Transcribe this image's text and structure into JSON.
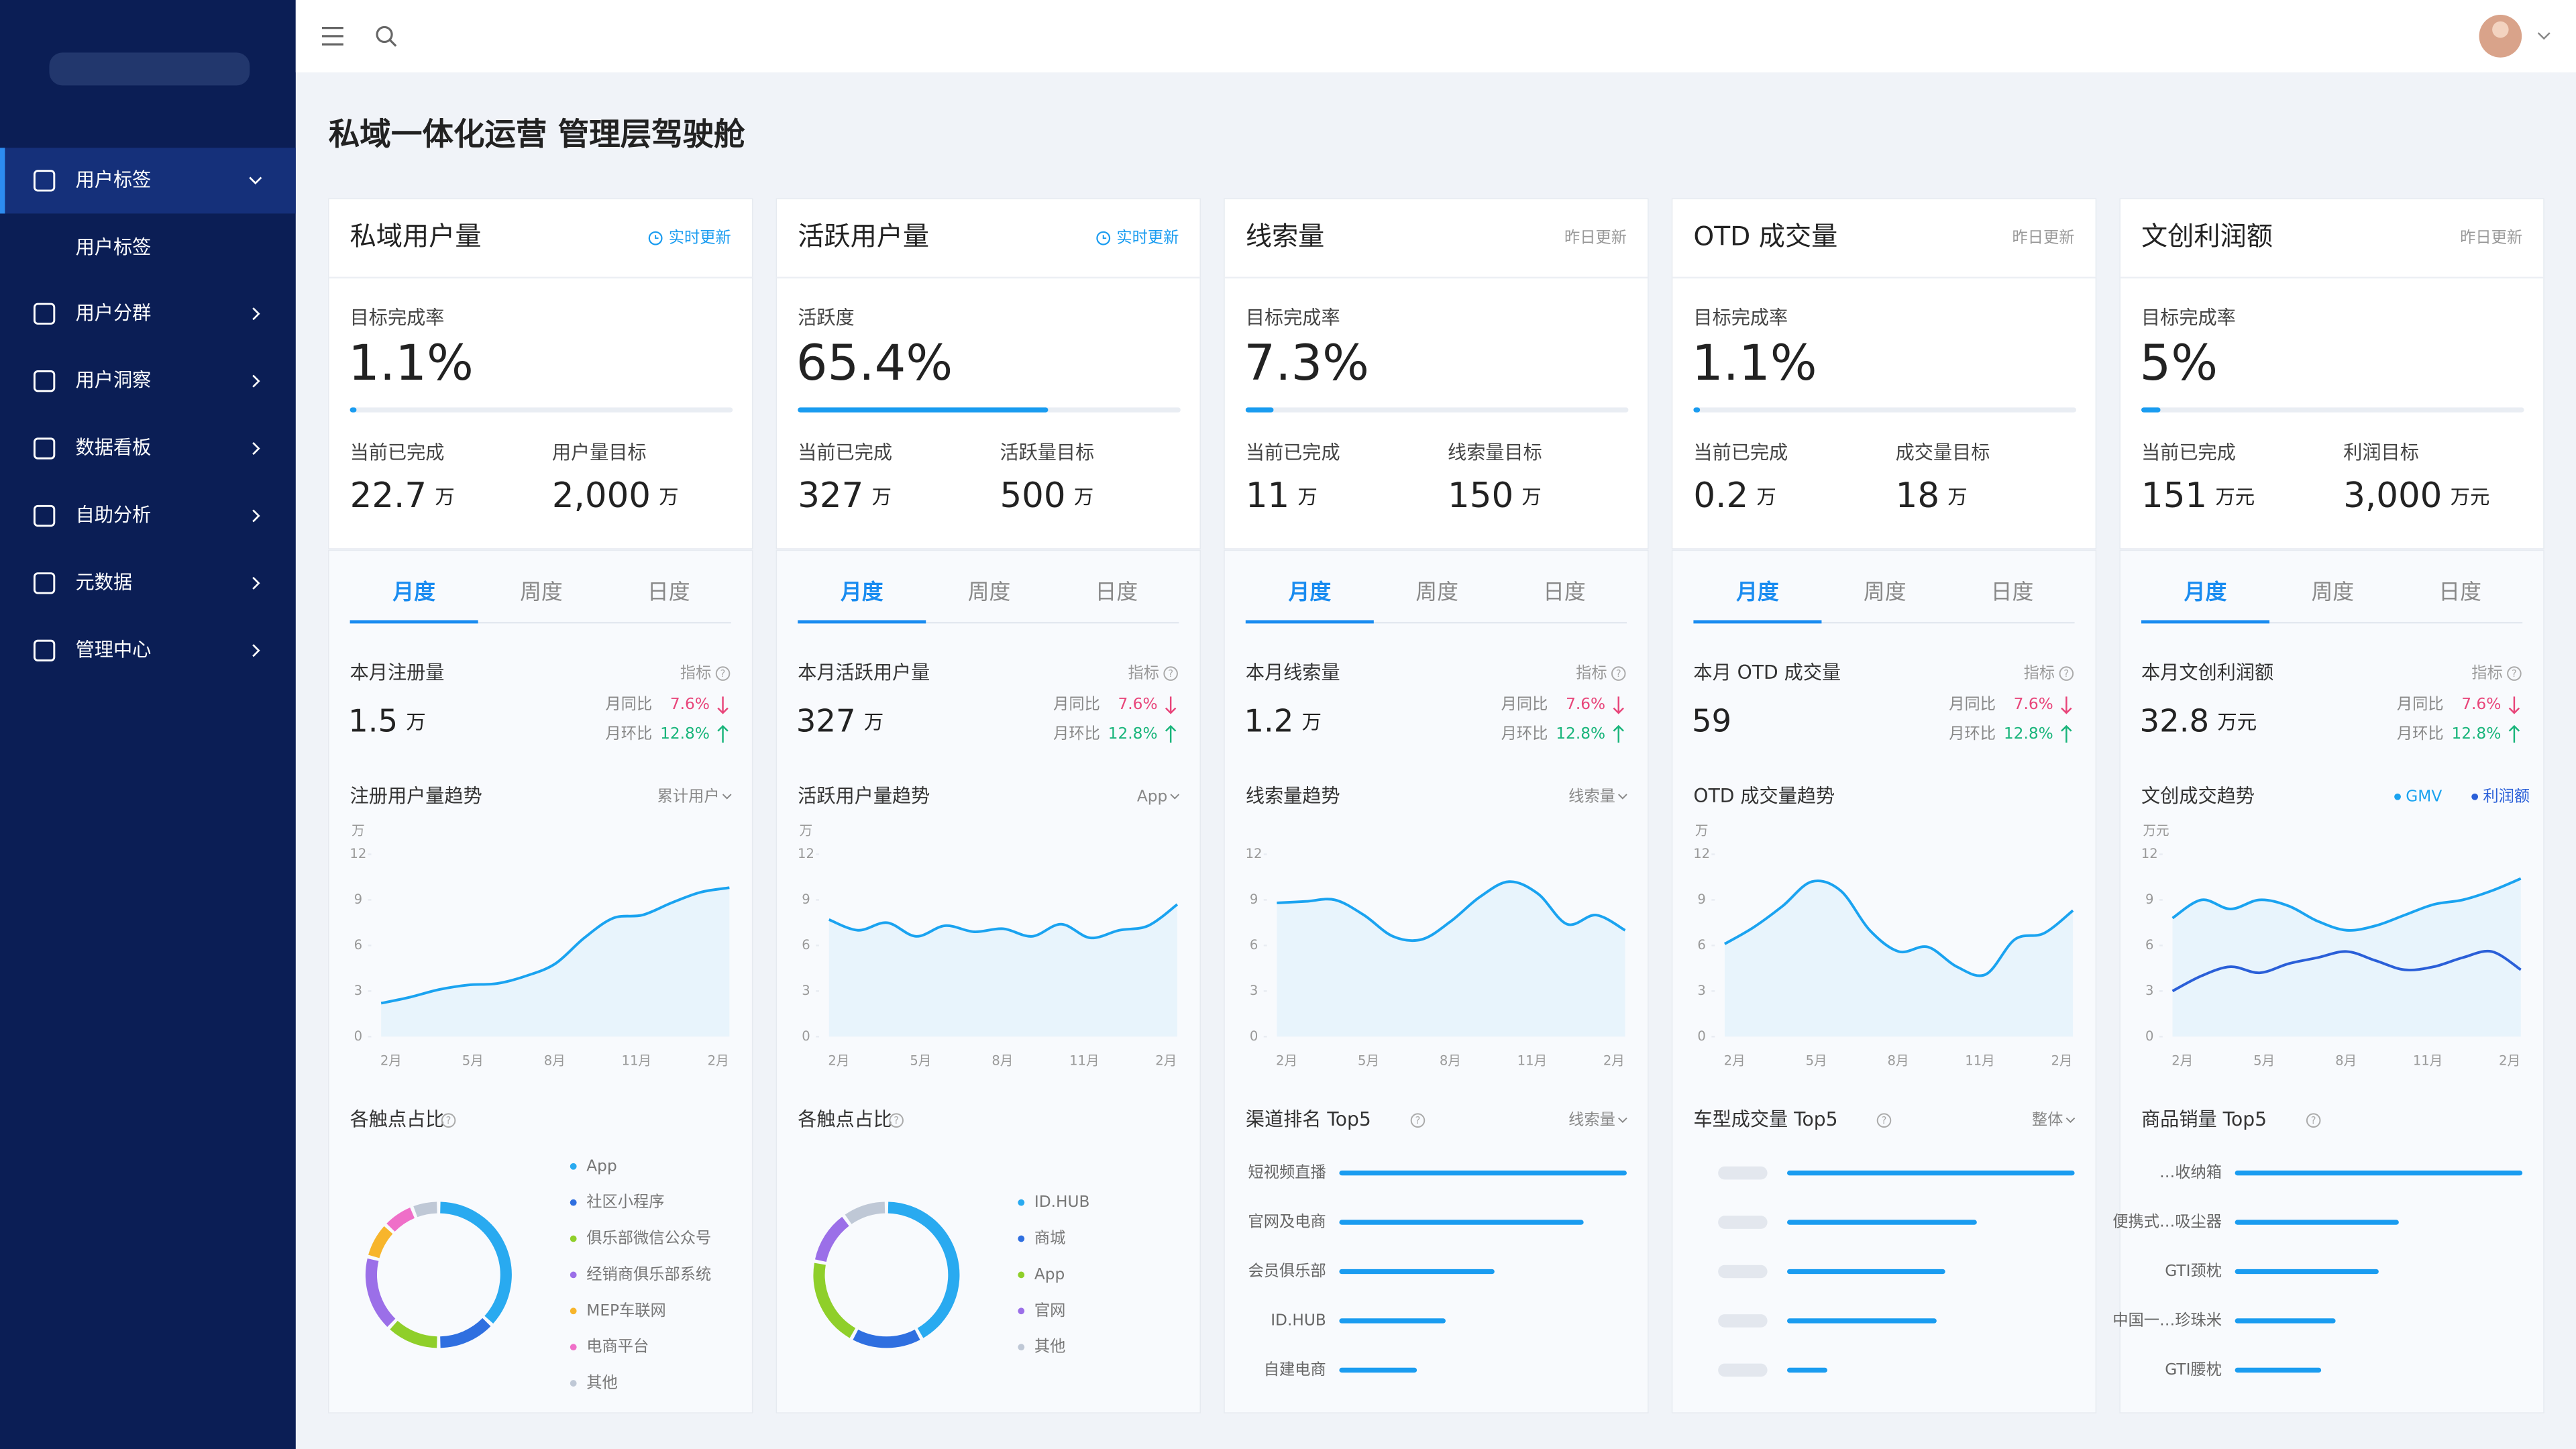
{
  "sidebar": {
    "menu": [
      {
        "label": "用户标签",
        "children": [
          "用户标签"
        ]
      },
      {
        "label": "用户分群"
      },
      {
        "label": "用户洞察"
      },
      {
        "label": "数据看板"
      },
      {
        "label": "自助分析"
      },
      {
        "label": "元数据"
      },
      {
        "label": "管理中心"
      }
    ]
  },
  "page_title": "私域一体化运营 管理层驾驶舱",
  "cards": [
    {
      "title": "私域用户量",
      "update": {
        "text": "实时更新",
        "color": "#1a9cf0",
        "icon": "clock"
      },
      "rate_label": "目标完成率",
      "rate": {
        "value": 1.1,
        "label": "1.1%"
      },
      "stats": [
        {
          "label": "当前已完成",
          "value": "22.7",
          "unit": "万"
        },
        {
          "label": "用户量目标",
          "value": "2,000",
          "unit": "万"
        }
      ],
      "tabs": [
        "月度",
        "周度",
        "日度"
      ],
      "metric": {
        "label": "本月注册量",
        "hint": "指标",
        "value": "1.5",
        "unit": "万",
        "yoy_label": "月同比",
        "yoy": "7.6%",
        "mom_label": "月环比",
        "mom": "12.8%"
      },
      "trend": {
        "title": "注册用户量趋势",
        "selector": "累计用户",
        "unit": "万",
        "ylim": [
          0,
          12
        ],
        "yticks": [
          0,
          3,
          6,
          9,
          12
        ],
        "x_labels": [
          "2月",
          "5月",
          "8月",
          "11月",
          "2月"
        ],
        "series": [
          {
            "color": "#1aa3f0",
            "values": [
              2.2,
              2.6,
              3.1,
              3.4,
              3.5,
              4.0,
              4.8,
              6.5,
              7.8,
              8.0,
              8.8,
              9.5,
              9.8
            ]
          }
        ]
      },
      "bottom": {
        "type": "donut",
        "title": "各触点占比",
        "items": [
          {
            "name": "App",
            "color": "#29aaf0",
            "value": 37
          },
          {
            "name": "社区小程序",
            "color": "#2f6fe0",
            "value": 13
          },
          {
            "name": "俱乐部微信公众号",
            "color": "#8fcf2a",
            "value": 12
          },
          {
            "name": "经销商俱乐部系统",
            "color": "#9b6fe8",
            "value": 17
          },
          {
            "name": "MEP车联网",
            "color": "#f7b52c",
            "value": 8
          },
          {
            "name": "电商平台",
            "color": "#ef6fc8",
            "value": 7
          },
          {
            "name": "其他",
            "color": "#bfc8d6",
            "value": 6
          }
        ]
      }
    },
    {
      "title": "活跃用户量",
      "update": {
        "text": "实时更新",
        "color": "#1a9cf0",
        "icon": "clock"
      },
      "rate_label": "活跃度",
      "rate": {
        "value": 65.4,
        "label": "65.4%"
      },
      "stats": [
        {
          "label": "当前已完成",
          "value": "327",
          "unit": "万"
        },
        {
          "label": "活跃量目标",
          "value": "500",
          "unit": "万"
        }
      ],
      "tabs": [
        "月度",
        "周度",
        "日度"
      ],
      "metric": {
        "label": "本月活跃用户量",
        "hint": "指标",
        "value": "327",
        "unit": "万",
        "yoy_label": "月同比",
        "yoy": "7.6%",
        "mom_label": "月环比",
        "mom": "12.8%"
      },
      "trend": {
        "title": "活跃用户量趋势",
        "selector": "App",
        "unit": "万",
        "ylim": [
          0,
          12
        ],
        "yticks": [
          0,
          3,
          6,
          9,
          12
        ],
        "x_labels": [
          "2月",
          "5月",
          "8月",
          "11月",
          "2月"
        ],
        "series": [
          {
            "color": "#1aa3f0",
            "values": [
              7.7,
              7.0,
              7.5,
              6.6,
              7.3,
              6.9,
              7.1,
              6.6,
              7.4,
              6.5,
              7.0,
              7.3,
              8.7
            ]
          }
        ]
      },
      "bottom": {
        "type": "donut",
        "title": "各触点占比",
        "items": [
          {
            "name": "ID.HUB",
            "color": "#29aaf0",
            "value": 42
          },
          {
            "name": "商城",
            "color": "#2f6fe0",
            "value": 16
          },
          {
            "name": "App",
            "color": "#8fcf2a",
            "value": 20
          },
          {
            "name": "官网",
            "color": "#9b6fe8",
            "value": 12
          },
          {
            "name": "其他",
            "color": "#bfc8d6",
            "value": 10
          }
        ]
      }
    },
    {
      "title": "线索量",
      "update": {
        "text": "昨日更新",
        "color": "#999999"
      },
      "rate_label": "目标完成率",
      "rate": {
        "value": 7.3,
        "label": "7.3%"
      },
      "stats": [
        {
          "label": "当前已完成",
          "value": "11",
          "unit": "万"
        },
        {
          "label": "线索量目标",
          "value": "150",
          "unit": "万"
        }
      ],
      "tabs": [
        "月度",
        "周度",
        "日度"
      ],
      "metric": {
        "label": "本月线索量",
        "hint": "指标",
        "value": "1.2",
        "unit": "万",
        "yoy_label": "月同比",
        "yoy": "7.6%",
        "mom_label": "月环比",
        "mom": "12.8%"
      },
      "trend": {
        "title": "线索量趋势",
        "selector": "线索量",
        "ylim": [
          0,
          12
        ],
        "yticks": [
          0,
          3,
          6,
          9,
          12
        ],
        "x_labels": [
          "2月",
          "5月",
          "8月",
          "11月",
          "2月"
        ],
        "series": [
          {
            "color": "#1aa3f0",
            "values": [
              8.8,
              8.9,
              9.0,
              8.0,
              6.6,
              6.4,
              7.6,
              9.2,
              10.2,
              9.4,
              7.4,
              8.0,
              7.0
            ]
          }
        ]
      },
      "bottom": {
        "type": "bar",
        "title": "渠道排名 Top5",
        "selector": "线索量",
        "color": "#1a9cf0",
        "items": [
          {
            "name": "短视频直播",
            "value": 100
          },
          {
            "name": "官网及电商",
            "value": 85
          },
          {
            "name": "会员俱乐部",
            "value": 54
          },
          {
            "name": "ID.HUB",
            "value": 37
          },
          {
            "name": "自建电商",
            "value": 27
          }
        ]
      }
    },
    {
      "title": "OTD 成交量",
      "update": {
        "text": "昨日更新",
        "color": "#999999"
      },
      "rate_label": "目标完成率",
      "rate": {
        "value": 1.1,
        "label": "1.1%"
      },
      "stats": [
        {
          "label": "当前已完成",
          "value": "0.2",
          "unit": "万"
        },
        {
          "label": "成交量目标",
          "value": "18",
          "unit": "万"
        }
      ],
      "tabs": [
        "月度",
        "周度",
        "日度"
      ],
      "metric": {
        "label": "本月 OTD 成交量",
        "hint": "指标",
        "value": "59",
        "yoy_label": "月同比",
        "yoy": "7.6%",
        "mom_label": "月环比",
        "mom": "12.8%"
      },
      "trend": {
        "title": "OTD 成交量趋势",
        "unit": "万",
        "ylim": [
          0,
          12
        ],
        "yticks": [
          0,
          3,
          6,
          9,
          12
        ],
        "x_labels": [
          "2月",
          "5月",
          "8月",
          "11月",
          "2月"
        ],
        "series": [
          {
            "color": "#1aa3f0",
            "values": [
              6.1,
              7.2,
              8.6,
              10.2,
              9.6,
              7.0,
              5.6,
              5.9,
              4.6,
              4.1,
              6.4,
              6.8,
              8.3
            ]
          }
        ]
      },
      "bottom": {
        "type": "bar",
        "title": "车型成交量 Top5",
        "selector": "整体",
        "color": "#1a9cf0",
        "items": [
          {
            "name": null,
            "value": 100
          },
          {
            "name": null,
            "value": 66
          },
          {
            "name": null,
            "value": 55
          },
          {
            "name": null,
            "value": 52
          },
          {
            "name": null,
            "value": 14
          }
        ]
      }
    },
    {
      "title": "文创利润额",
      "update": {
        "text": "昨日更新",
        "color": "#999999"
      },
      "rate_label": "目标完成率",
      "rate": {
        "value": 5,
        "label": "5%"
      },
      "stats": [
        {
          "label": "当前已完成",
          "value": "151",
          "unit": "万元"
        },
        {
          "label": "利润目标",
          "value": "3,000",
          "unit": "万元"
        }
      ],
      "tabs": [
        "月度",
        "周度",
        "日度"
      ],
      "metric": {
        "label": "本月文创利润额",
        "hint": "指标",
        "value": "32.8",
        "unit": "万元",
        "yoy_label": "月同比",
        "yoy": "7.6%",
        "mom_label": "月环比",
        "mom": "12.8%"
      },
      "trend": {
        "title": "文创成交趋势",
        "unit": "万元",
        "ylim": [
          0,
          12
        ],
        "yticks": [
          0,
          3,
          6,
          9,
          12
        ],
        "x_labels": [
          "2月",
          "5月",
          "8月",
          "11月",
          "2月"
        ],
        "series": [
          {
            "name": "GMV",
            "color": "#1aa3f0",
            "values": [
              7.8,
              9.0,
              8.4,
              9.0,
              8.6,
              7.6,
              7.0,
              7.3,
              8.0,
              8.7,
              9.0,
              9.6,
              10.4
            ]
          },
          {
            "name": "利润额",
            "color": "#2a5fd8",
            "values": [
              3.0,
              4.0,
              4.6,
              4.2,
              4.8,
              5.2,
              5.6,
              5.0,
              4.4,
              4.6,
              5.2,
              5.6,
              4.4
            ]
          }
        ]
      },
      "bottom": {
        "type": "bar",
        "title": "商品销量 Top5",
        "color": "#1a9cf0",
        "items": [
          {
            "name": "…收纳箱",
            "value": 100
          },
          {
            "name": "便携式…吸尘器",
            "value": 57
          },
          {
            "name": "GTI颈枕",
            "value": 50
          },
          {
            "name": "中国一…珍珠米",
            "value": 35
          },
          {
            "name": "GTI腰枕",
            "value": 30
          }
        ]
      }
    }
  ]
}
